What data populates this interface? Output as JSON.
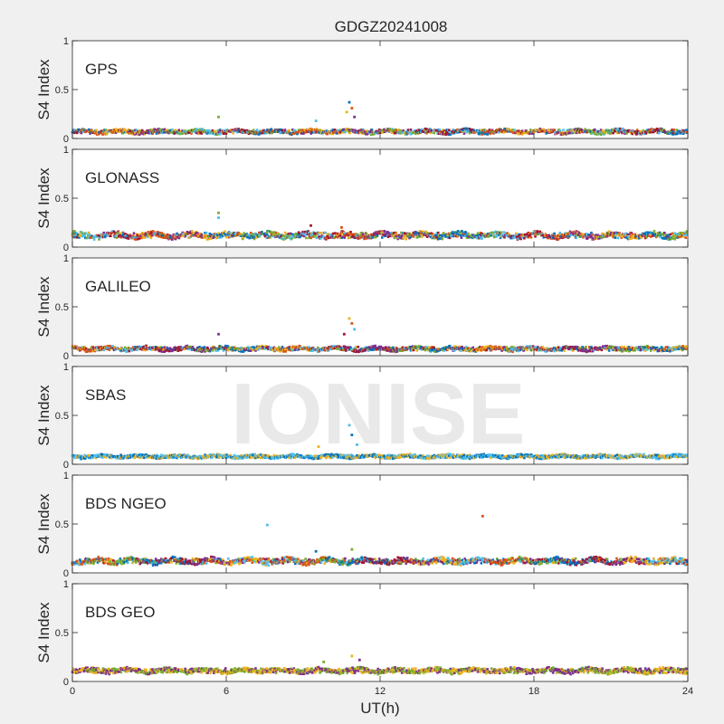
{
  "figure": {
    "title": "GDGZ20241008",
    "xlabel": "UT(h)",
    "watermark": "IONISE",
    "background_color": "#f0f0f0",
    "axes_color": "#ffffff",
    "watermark_color": "#e6e6e6"
  },
  "chart_data": {
    "type": "scatter",
    "x_range": [
      0,
      24
    ],
    "x_ticks": [
      "0",
      "6",
      "12",
      "18",
      "24"
    ],
    "y_range": [
      0,
      1
    ],
    "y_ticks": [
      "0",
      "0.5",
      "1"
    ],
    "ylabel": "S4 Index",
    "grid": false,
    "series_colors": [
      "#0072BD",
      "#D95319",
      "#EDB120",
      "#7E2F8E",
      "#77AC30",
      "#4DBEEE",
      "#A2142F"
    ],
    "panels": [
      {
        "label": "GPS",
        "baseline": 0.07,
        "noise": 0.025,
        "colors": [
          "#0072BD",
          "#D95319",
          "#EDB120",
          "#7E2F8E",
          "#77AC30",
          "#4DBEEE",
          "#A2142F"
        ],
        "spikes": [
          [
            10.8,
            0.37
          ],
          [
            10.9,
            0.31
          ],
          [
            10.7,
            0.27
          ],
          [
            11.0,
            0.22
          ],
          [
            5.7,
            0.22
          ],
          [
            9.5,
            0.18
          ]
        ]
      },
      {
        "label": "GLONASS",
        "baseline": 0.12,
        "noise": 0.035,
        "colors": [
          "#77AC30",
          "#4DBEEE",
          "#A2142F",
          "#D95319",
          "#7E2F8E",
          "#EDB120",
          "#0072BD"
        ],
        "spikes": [
          [
            5.7,
            0.35
          ],
          [
            5.7,
            0.3
          ],
          [
            9.3,
            0.22
          ],
          [
            10.5,
            0.2
          ]
        ]
      },
      {
        "label": "GALILEO",
        "baseline": 0.07,
        "noise": 0.025,
        "colors": [
          "#EDB120",
          "#D95319",
          "#4DBEEE",
          "#A2142F",
          "#7E2F8E",
          "#77AC30",
          "#0072BD"
        ],
        "spikes": [
          [
            10.8,
            0.38
          ],
          [
            10.9,
            0.33
          ],
          [
            11.0,
            0.27
          ],
          [
            10.6,
            0.22
          ],
          [
            5.7,
            0.22
          ]
        ]
      },
      {
        "label": "SBAS",
        "baseline": 0.08,
        "noise": 0.02,
        "colors": [
          "#4DBEEE",
          "#0072BD",
          "#EDB120"
        ],
        "spikes": [
          [
            10.8,
            0.4
          ],
          [
            10.9,
            0.3
          ],
          [
            9.6,
            0.18
          ],
          [
            11.1,
            0.2
          ]
        ]
      },
      {
        "label": "BDS NGEO",
        "baseline": 0.12,
        "noise": 0.035,
        "colors": [
          "#4DBEEE",
          "#D95319",
          "#77AC30",
          "#0072BD",
          "#A2142F",
          "#7E2F8E",
          "#EDB120"
        ],
        "spikes": [
          [
            7.6,
            0.49
          ],
          [
            16.0,
            0.58
          ],
          [
            10.9,
            0.24
          ],
          [
            9.5,
            0.22
          ]
        ]
      },
      {
        "label": "BDS GEO",
        "baseline": 0.11,
        "noise": 0.03,
        "colors": [
          "#EDB120",
          "#7E2F8E",
          "#77AC30"
        ],
        "spikes": [
          [
            10.9,
            0.26
          ],
          [
            11.2,
            0.22
          ],
          [
            9.8,
            0.2
          ]
        ]
      }
    ]
  }
}
